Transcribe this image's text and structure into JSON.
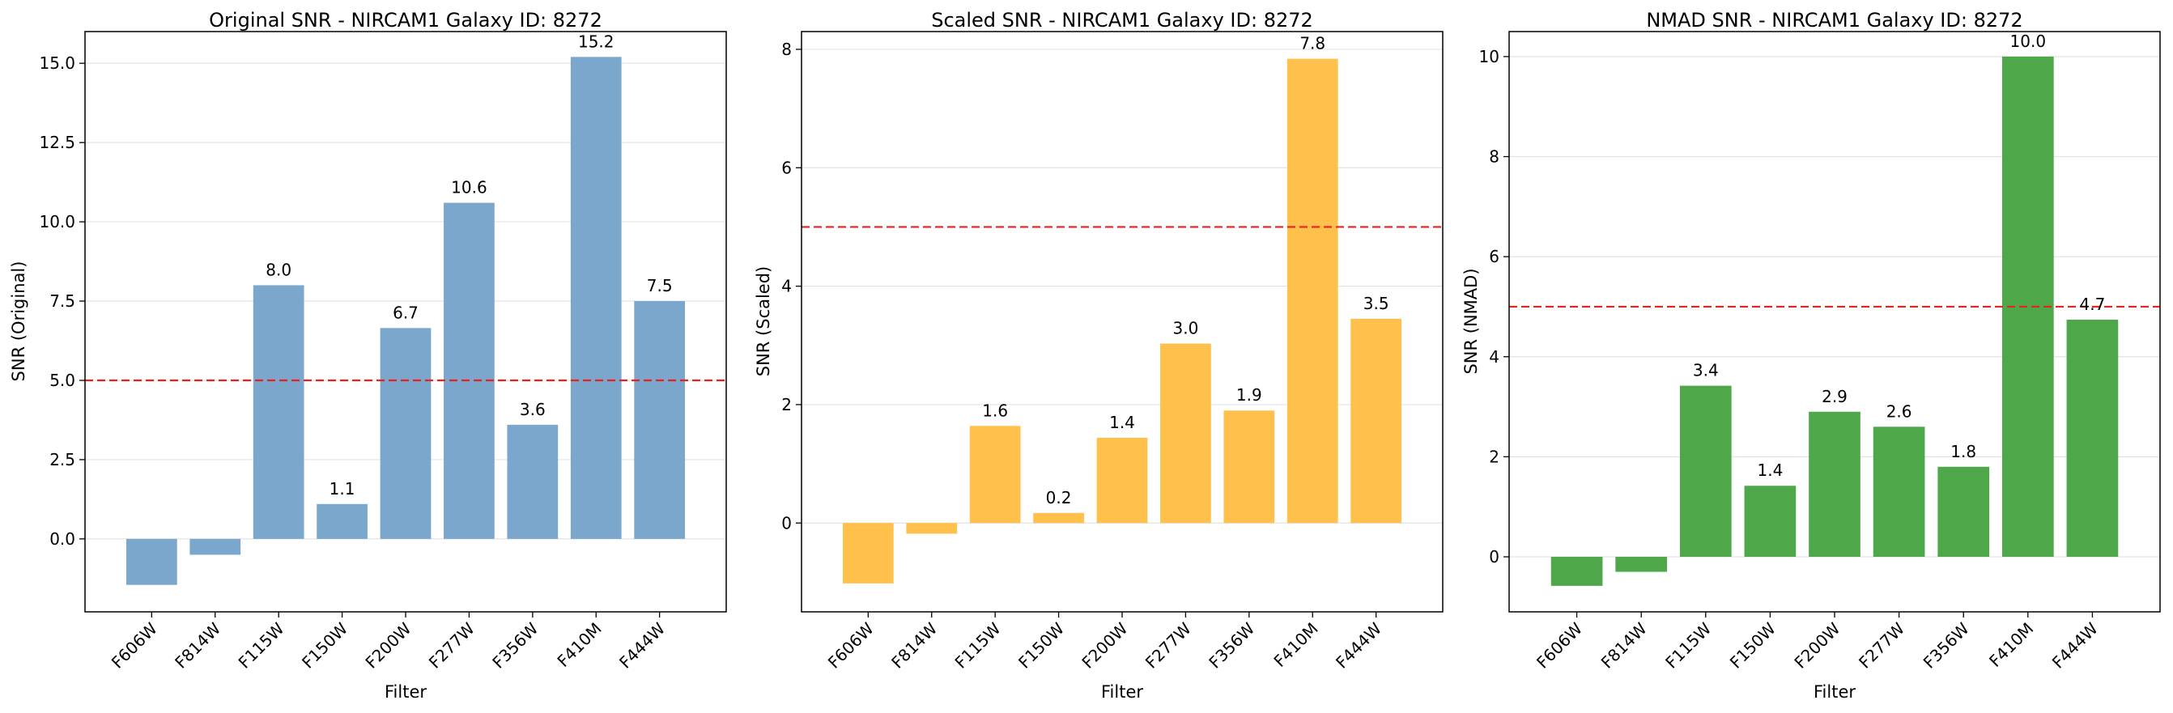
{
  "chart_data": [
    {
      "type": "bar",
      "title": "Original SNR - NIRCAM1 Galaxy ID: 8272",
      "xlabel": "Filter",
      "ylabel": "SNR (Original)",
      "categories": [
        "F606W",
        "F814W",
        "F115W",
        "F150W",
        "F200W",
        "F277W",
        "F356W",
        "F410M",
        "F444W"
      ],
      "values": [
        -1.45,
        -0.5,
        8.0,
        1.1,
        6.65,
        10.6,
        3.6,
        15.2,
        7.5
      ],
      "data_labels": [
        "",
        "",
        "8.0",
        "1.1",
        "6.7",
        "10.6",
        "3.6",
        "15.2",
        "7.5"
      ],
      "ylim": [
        -2.3,
        16.0
      ],
      "yticks": [
        0.0,
        2.5,
        5.0,
        7.5,
        10.0,
        12.5,
        15.0
      ],
      "ytick_labels": [
        "0.0",
        "2.5",
        "5.0",
        "7.5",
        "10.0",
        "12.5",
        "15.0"
      ],
      "threshold": 5.0,
      "color": "#7ba7cc",
      "threshold_color": "#e8231f",
      "grid": true
    },
    {
      "type": "bar",
      "title": "Scaled SNR - NIRCAM1 Galaxy ID: 8272",
      "xlabel": "Filter",
      "ylabel": "SNR (Scaled)",
      "categories": [
        "F606W",
        "F814W",
        "F115W",
        "F150W",
        "F200W",
        "F277W",
        "F356W",
        "F410M",
        "F444W"
      ],
      "values": [
        -1.02,
        -0.18,
        1.64,
        0.17,
        1.44,
        3.03,
        1.9,
        7.84,
        3.45
      ],
      "data_labels": [
        "",
        "",
        "1.6",
        "0.2",
        "1.4",
        "3.0",
        "1.9",
        "7.8",
        "3.5"
      ],
      "ylim": [
        -1.5,
        8.3
      ],
      "yticks": [
        0,
        2,
        4,
        6,
        8
      ],
      "ytick_labels": [
        "0",
        "2",
        "4",
        "6",
        "8"
      ],
      "threshold": 5.0,
      "color": "#ffc04c",
      "threshold_color": "#e8231f",
      "grid": true
    },
    {
      "type": "bar",
      "title": "NMAD SNR - NIRCAM1 Galaxy ID: 8272",
      "xlabel": "Filter",
      "ylabel": "SNR (NMAD)",
      "categories": [
        "F606W",
        "F814W",
        "F115W",
        "F150W",
        "F200W",
        "F277W",
        "F356W",
        "F410M",
        "F444W"
      ],
      "values": [
        -0.58,
        -0.3,
        3.42,
        1.42,
        2.9,
        2.6,
        1.8,
        10.0,
        4.74
      ],
      "data_labels": [
        "",
        "",
        "3.4",
        "1.4",
        "2.9",
        "2.6",
        "1.8",
        "10.0",
        "4.7"
      ],
      "ylim": [
        -1.1,
        10.5
      ],
      "yticks": [
        0,
        2,
        4,
        6,
        8,
        10
      ],
      "ytick_labels": [
        "0",
        "2",
        "4",
        "6",
        "8",
        "10"
      ],
      "threshold": 5.0,
      "color": "#4ea84a",
      "threshold_color": "#e8231f",
      "grid": true
    }
  ]
}
